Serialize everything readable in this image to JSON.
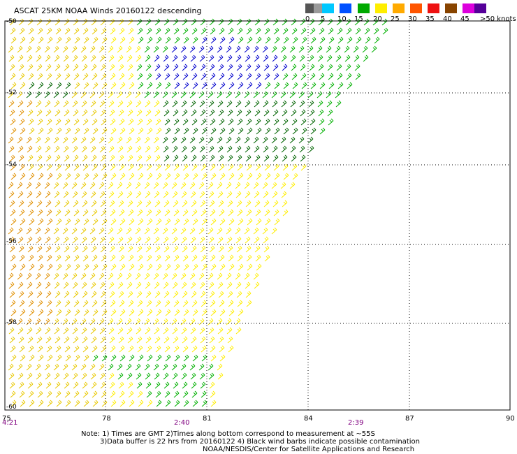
{
  "title": "ASCAT 25KM NOAA Winds 20160122 descending",
  "legend": {
    "labels": [
      "0",
      "5",
      "10",
      "15",
      "20",
      "25",
      "30",
      "35",
      "40",
      "45",
      ">50 knots"
    ],
    "colors": [
      "#555555",
      "#9a9a9a",
      "#00c8ff",
      "#0050ff",
      "#00aa00",
      "#ffee00",
      "#ffaa00",
      "#ff5500",
      "#ee1111",
      "#884400",
      "#dd00dd",
      "#550099"
    ]
  },
  "axes": {
    "lat_labels": [
      "-50",
      "-52",
      "-54",
      "-56",
      "-58",
      "-60"
    ],
    "lon_labels": [
      "75",
      "78",
      "81",
      "84",
      "87",
      "90"
    ]
  },
  "times": [
    "4:21",
    "2:40",
    "2:39"
  ],
  "notes": [
    "Note: 1) Times are GMT 2)Times along bottom correspond to measurement at ~55S",
    "3)Data buffer is 22 hrs from 20160122 4) Black wind barbs indicate possible contamination",
    "NOAA/NESDIS/Center for Satellite Applications and Research"
  ],
  "wind_colors": {
    "dark_yellow": "#e8c800",
    "yellow": "#ffee00",
    "orange": "#e09000",
    "green": "#00b000",
    "dark_green": "#006400",
    "blue": "#0000cc"
  }
}
